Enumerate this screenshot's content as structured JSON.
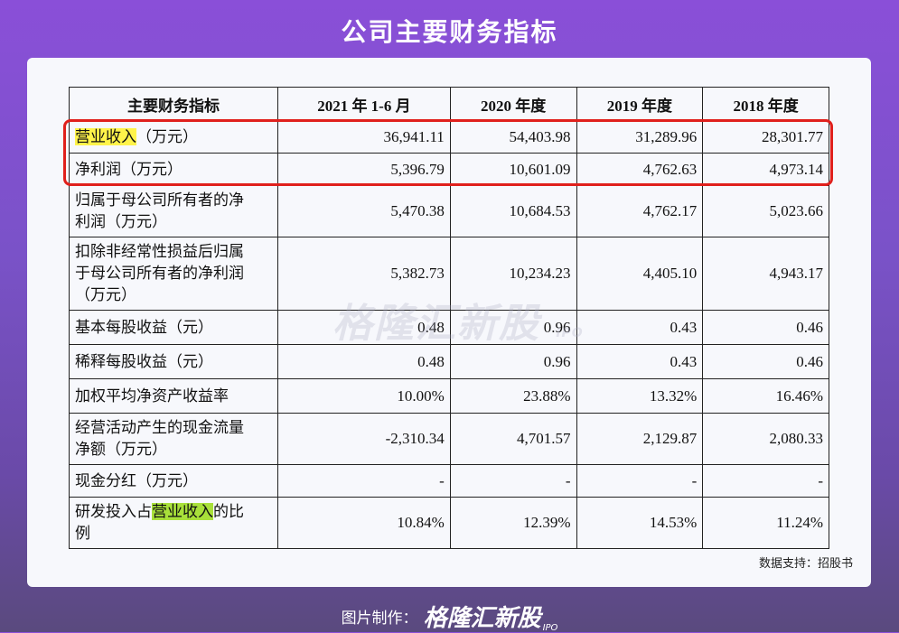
{
  "page_title": "公司主要财务指标",
  "table": {
    "headers": [
      "主要财务指标",
      "2021 年 1-6 月",
      "2020 年度",
      "2019 年度",
      "2018 年度"
    ],
    "rows": [
      {
        "label": "营业收入（万元）",
        "values": [
          "36,941.11",
          "54,403.98",
          "31,289.96",
          "28,301.77"
        ]
      },
      {
        "label": "净利润（万元）",
        "values": [
          "5,396.79",
          "10,601.09",
          "4,762.63",
          "4,973.14"
        ]
      },
      {
        "label": "归属于母公司所有者的净利润（万元）",
        "values": [
          "5,470.38",
          "10,684.53",
          "4,762.17",
          "5,023.66"
        ]
      },
      {
        "label": "扣除非经常性损益后归属于母公司所有者的净利润（万元）",
        "values": [
          "5,382.73",
          "10,234.23",
          "4,405.10",
          "4,943.17"
        ]
      },
      {
        "label": "基本每股收益（元）",
        "values": [
          "0.48",
          "0.96",
          "0.43",
          "0.46"
        ]
      },
      {
        "label": "稀释每股收益（元）",
        "values": [
          "0.48",
          "0.96",
          "0.43",
          "0.46"
        ]
      },
      {
        "label": "加权平均净资产收益率",
        "values": [
          "10.00%",
          "23.88%",
          "13.32%",
          "16.46%"
        ]
      },
      {
        "label": "经营活动产生的现金流量净额（万元）",
        "values": [
          "-2,310.34",
          "4,701.57",
          "2,129.87",
          "2,080.33"
        ]
      },
      {
        "label": "现金分红（万元）",
        "values": [
          "-",
          "-",
          "-",
          "-"
        ]
      },
      {
        "label": "研发投入占营业收入的比例",
        "values": [
          "10.84%",
          "12.39%",
          "14.53%",
          "11.24%"
        ]
      }
    ],
    "row0_label_parts": [
      "营业收入",
      "（万元）"
    ],
    "row1_label_parts": [
      "净利润",
      "（万元）"
    ],
    "row2_label_lines": [
      "归属于母公司所有者的净",
      "利润（万元）"
    ],
    "row3_label_lines": [
      "扣除非经常性损益后归属",
      "于母公司所有者的净利润",
      "（万元）"
    ],
    "row7_label_lines": [
      "经营活动产生的现金流量",
      "净额（万元）"
    ],
    "row9_label_parts": [
      "研发投入占",
      "营业收入",
      "的比",
      "例"
    ]
  },
  "watermark": {
    "text": "格隆汇新股",
    "sub": "IPO"
  },
  "source_text": "数据支持：招股书",
  "footer": {
    "label": "图片制作：",
    "brand": "格隆汇新股",
    "ipo": "IPO"
  },
  "colors": {
    "highlight_yellow": "#fff34a",
    "highlight_green": "#a8e03a",
    "red_box": "#e0201c"
  }
}
